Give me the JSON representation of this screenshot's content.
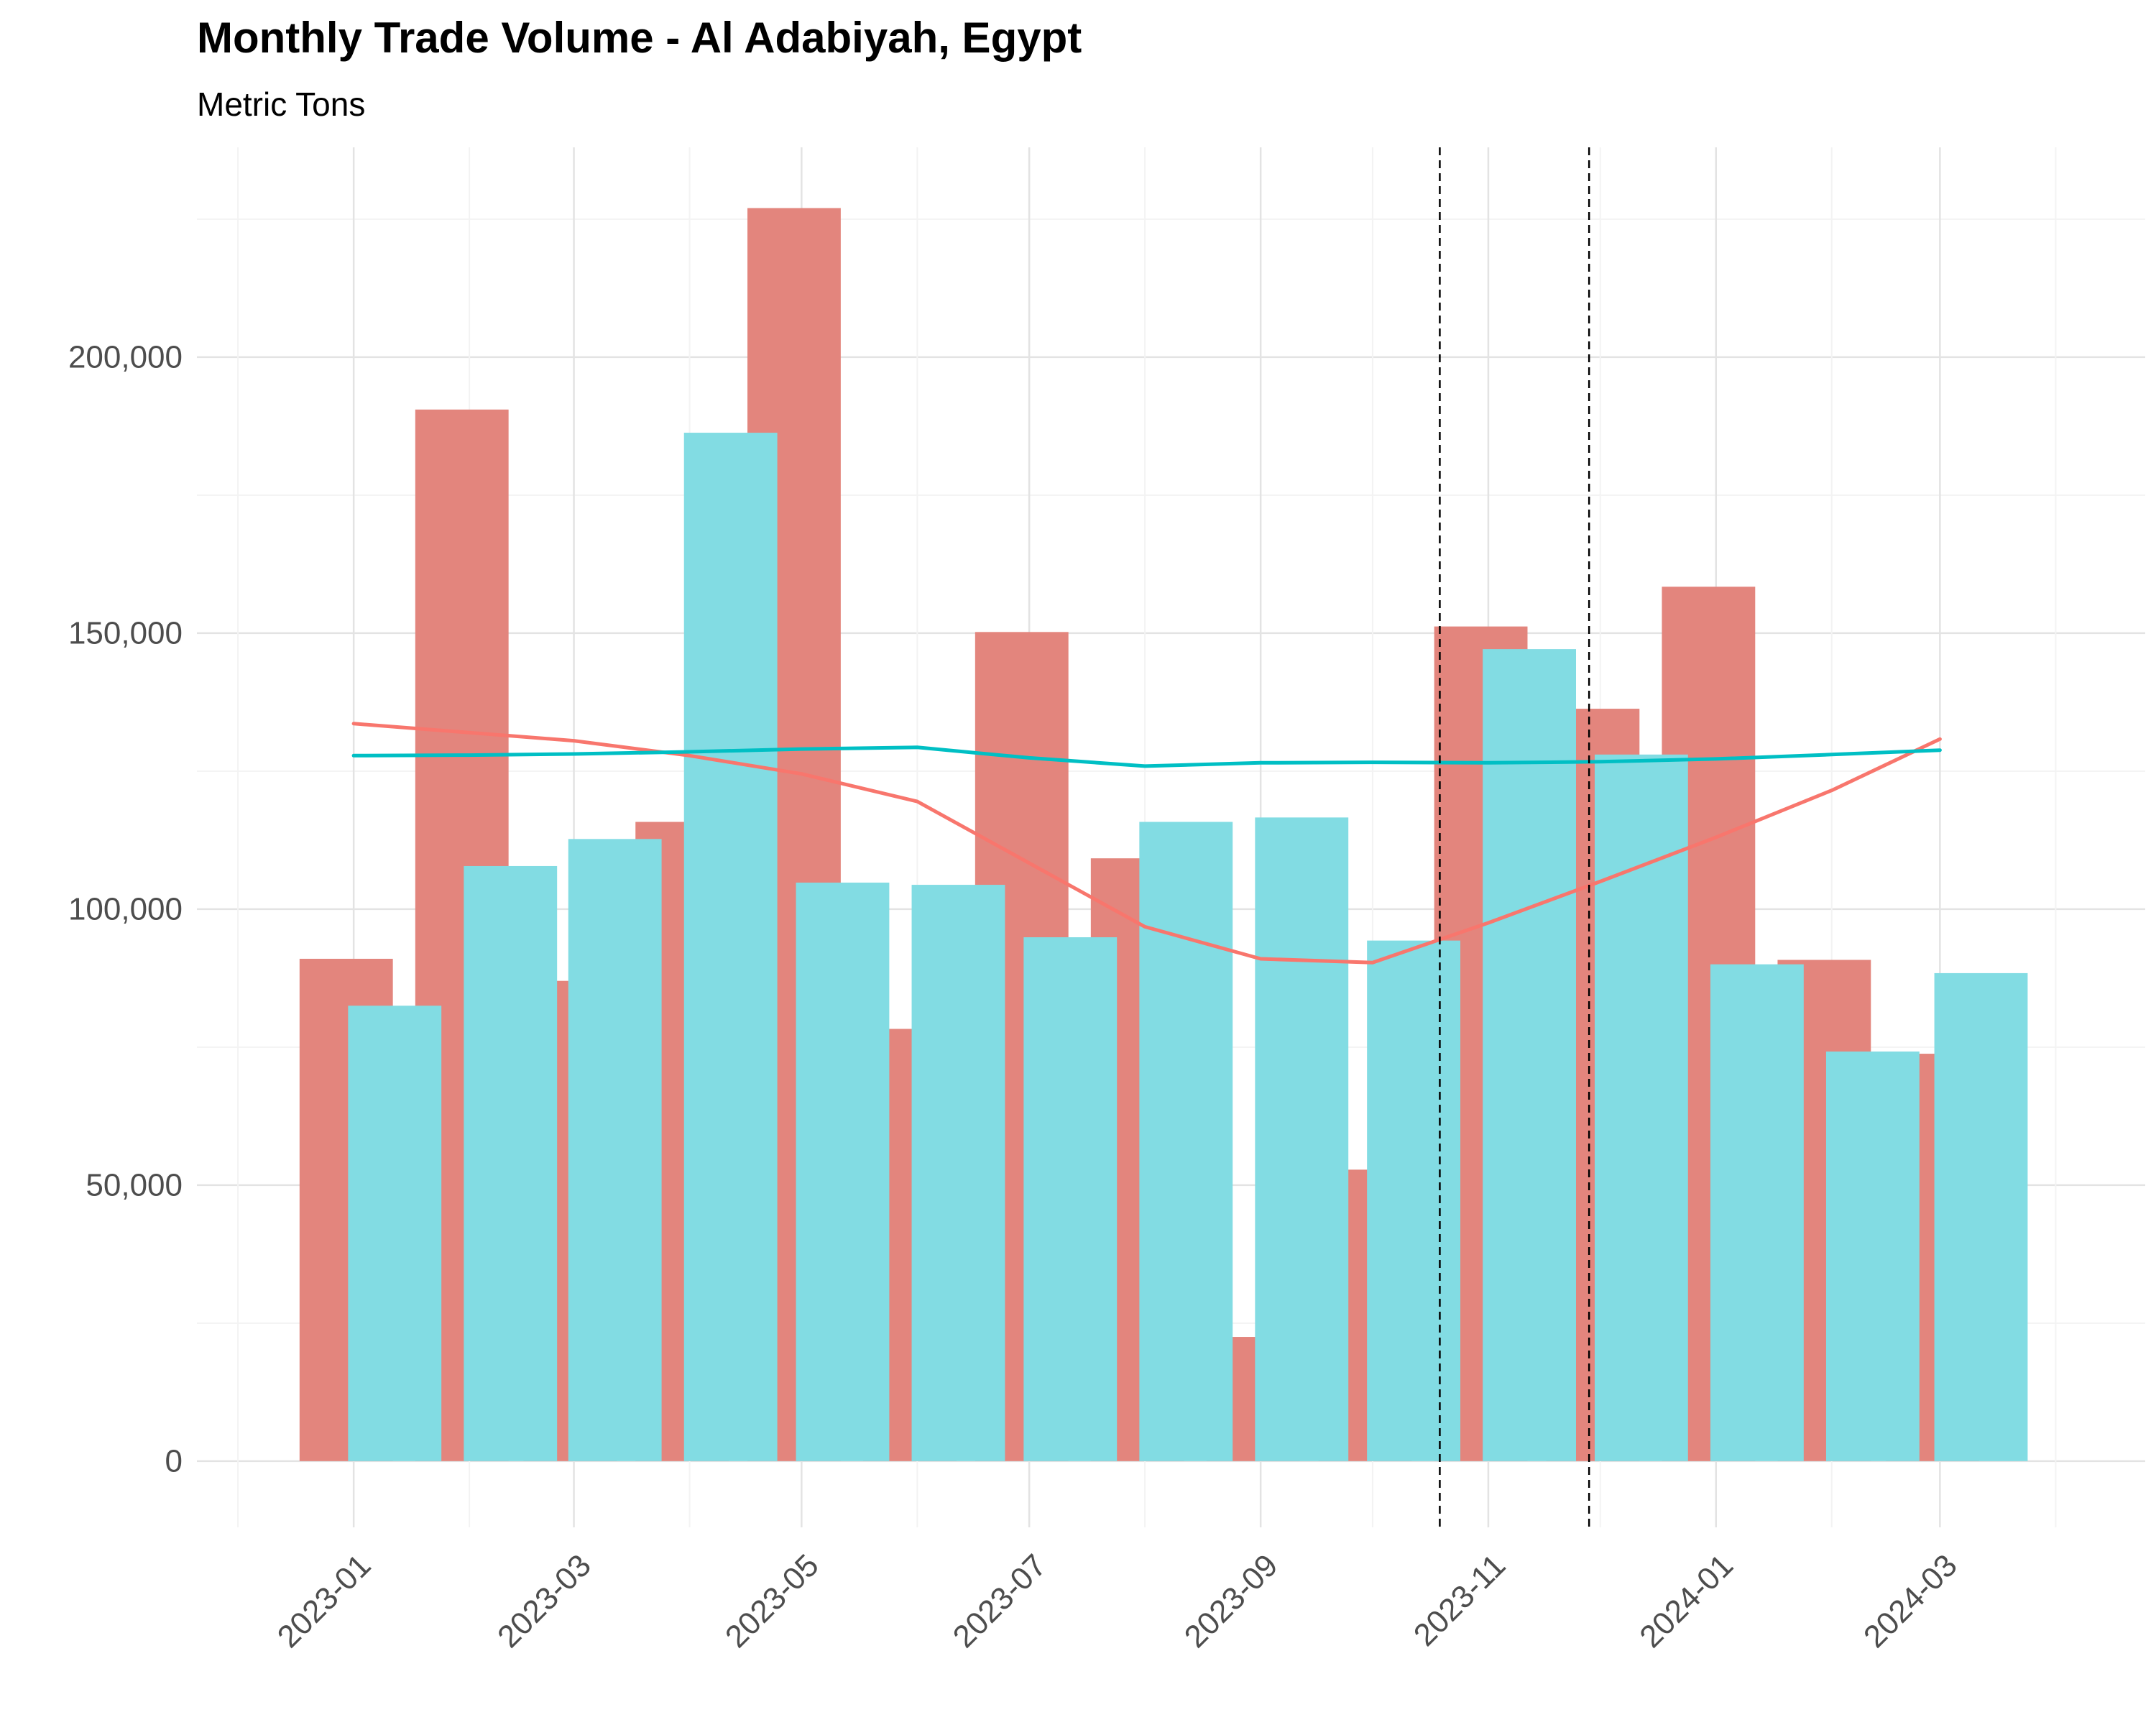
{
  "chart_data": {
    "type": "bar",
    "title": "Monthly Trade Volume - Al Adabiyah, Egypt",
    "subtitle": "Metric Tons",
    "xlabel": "",
    "ylabel": "",
    "ylim": [
      -12000,
      238000
    ],
    "y_ticks": [
      0,
      50000,
      100000,
      150000,
      200000
    ],
    "y_tick_labels": [
      "0",
      "50,000",
      "100,000",
      "150,000",
      "200,000"
    ],
    "x_tick_dates": [
      "2023-01-01",
      "2023-03-01",
      "2023-05-01",
      "2023-07-01",
      "2023-09-01",
      "2023-11-01",
      "2024-01-01",
      "2024-03-01"
    ],
    "x_tick_labels": [
      "2023-01",
      "2023-03",
      "2023-05",
      "2023-07",
      "2023-09",
      "2023-11",
      "2024-01",
      "2024-03"
    ],
    "grid": true,
    "legend": "none",
    "colors": {
      "series_a": "#f8766d",
      "series_b": "#00bfc4",
      "bar_a": "#e3857d",
      "bar_b": "#82dce3",
      "vline": "#000000"
    },
    "series": [
      {
        "color": "#e3857d",
        "dates": [
          "2022-12-30",
          "2023-01-30",
          "2023-02-28",
          "2023-03-30",
          "2023-04-29",
          "2023-05-30",
          "2023-06-29",
          "2023-07-30",
          "2023-08-30",
          "2023-09-29",
          "2023-10-30",
          "2023-11-29",
          "2023-12-30",
          "2024-01-30",
          "2024-02-28"
        ],
        "values": [
          91000,
          190500,
          87000,
          115800,
          227000,
          78300,
          150200,
          109200,
          22500,
          52800,
          151200,
          136300,
          158400,
          90800,
          73800
        ]
      },
      {
        "color": "#82dce3",
        "dates": [
          "2023-01-12",
          "2023-02-12",
          "2023-03-12",
          "2023-04-12",
          "2023-05-12",
          "2023-06-12",
          "2023-07-12",
          "2023-08-12",
          "2023-09-12",
          "2023-10-12",
          "2023-11-12",
          "2023-12-12",
          "2024-01-12",
          "2024-02-12",
          "2024-03-12"
        ],
        "values": [
          82500,
          107800,
          112700,
          186300,
          104800,
          104400,
          94900,
          115800,
          116600,
          94300,
          147100,
          128000,
          90000,
          74200,
          88400
        ]
      }
    ],
    "trend_lines": [
      {
        "color": "#f8766d",
        "dates": [
          "2023-01-01",
          "2023-03-01",
          "2023-04-01",
          "2023-05-01",
          "2023-06-01",
          "2023-08-01",
          "2023-09-01",
          "2023-10-01",
          "2023-11-01",
          "2023-12-01",
          "2024-01-01",
          "2024-02-01",
          "2024-03-01"
        ],
        "values": [
          133600,
          130500,
          127800,
          124500,
          119500,
          96800,
          91000,
          90300,
          97500,
          105000,
          113000,
          121500,
          130800
        ]
      },
      {
        "color": "#00bfc4",
        "dates": [
          "2023-01-01",
          "2023-02-01",
          "2023-03-01",
          "2023-04-01",
          "2023-05-01",
          "2023-06-01",
          "2023-07-01",
          "2023-08-01",
          "2023-09-01",
          "2023-10-01",
          "2023-11-01",
          "2023-12-01",
          "2024-01-01",
          "2024-02-01",
          "2024-03-01"
        ],
        "values": [
          127800,
          127900,
          128100,
          128500,
          129000,
          129300,
          127400,
          125900,
          126500,
          126600,
          126500,
          126700,
          127200,
          128000,
          128800
        ]
      }
    ],
    "vlines": [
      "2023-10-19",
      "2023-11-28"
    ]
  }
}
